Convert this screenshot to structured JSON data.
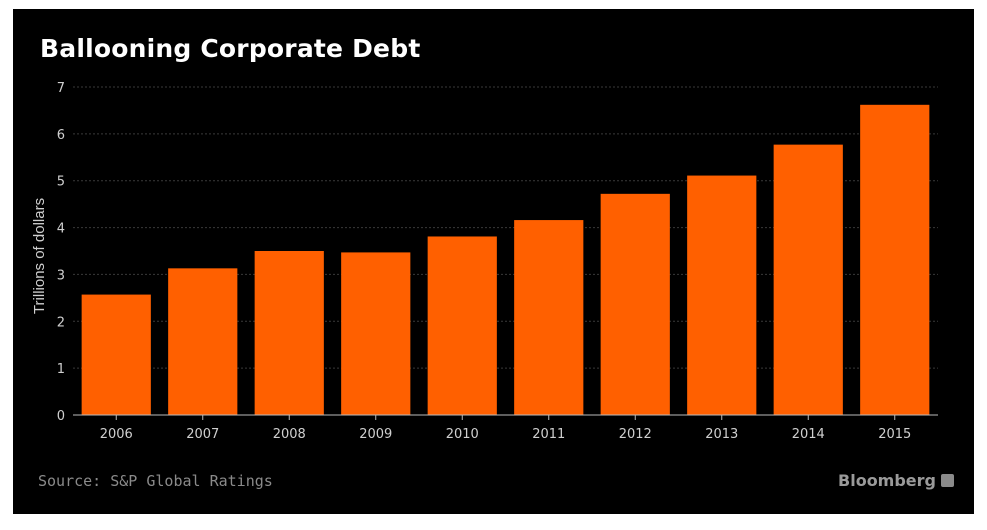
{
  "colors": {
    "background": "#000000",
    "bar": "#ff6000",
    "text": "#ffffff",
    "muted": "#8a8a8a"
  },
  "footer": {
    "source": "Source: S&P Global Ratings",
    "brand": "Bloomberg"
  },
  "chart_data": {
    "type": "bar",
    "title": "Ballooning Corporate Debt",
    "xlabel": "",
    "ylabel": "Trillions of dollars",
    "categories": [
      "2006",
      "2007",
      "2008",
      "2009",
      "2010",
      "2011",
      "2012",
      "2013",
      "2014",
      "2015"
    ],
    "values": [
      2.57,
      3.13,
      3.5,
      3.47,
      3.81,
      4.16,
      4.72,
      5.11,
      5.77,
      6.62
    ],
    "ylim": [
      0,
      7
    ],
    "yticks": [
      0,
      1,
      2,
      3,
      4,
      5,
      6,
      7
    ],
    "grid": true,
    "legend": "none"
  }
}
